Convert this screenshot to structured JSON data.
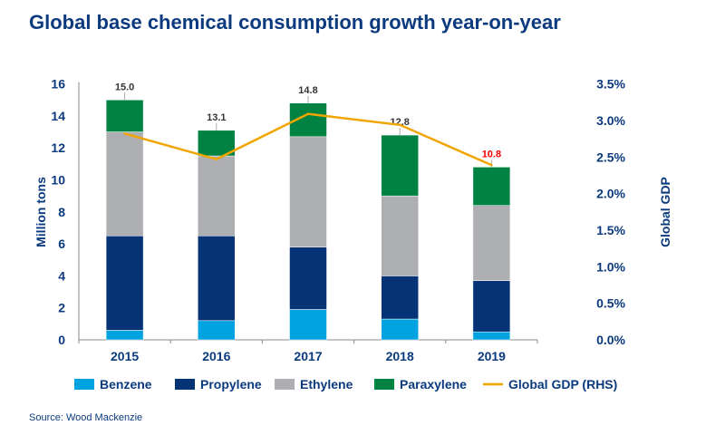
{
  "title": "Global base chemical consumption growth year-on-year",
  "source": "Source: Wood Mackenzie",
  "chart_data": {
    "type": "bar",
    "stacked": true,
    "categories": [
      "2015",
      "2016",
      "2017",
      "2018",
      "2019"
    ],
    "series": [
      {
        "name": "Benzene",
        "color": "#00a3e0",
        "values": [
          0.6,
          1.2,
          1.9,
          1.3,
          0.5
        ]
      },
      {
        "name": "Propylene",
        "color": "#063375",
        "values": [
          5.9,
          5.3,
          3.9,
          2.7,
          3.2
        ]
      },
      {
        "name": "Ethylene",
        "color": "#aeafb2",
        "values": [
          6.5,
          5.0,
          6.9,
          5.0,
          4.7
        ]
      },
      {
        "name": "Paraxylene",
        "color": "#008342",
        "values": [
          2.0,
          1.6,
          2.1,
          3.8,
          2.4
        ]
      }
    ],
    "line_series": {
      "name": "Global GDP (RHS)",
      "color": "#f0a500",
      "axis": "right",
      "values": [
        2.82,
        2.47,
        3.09,
        2.94,
        2.39
      ]
    },
    "totals": [
      "15.0",
      "13.1",
      "14.8",
      "12.8",
      "10.8"
    ],
    "total_colors": [
      "#333333",
      "#333333",
      "#333333",
      "#333333",
      "#ff0000"
    ],
    "ylabel": "Million tons",
    "ylim": [
      0,
      16
    ],
    "yticks": [
      "0",
      "2",
      "4",
      "6",
      "8",
      "10",
      "12",
      "14",
      "16"
    ],
    "y2label": "Global GDP",
    "y2lim": [
      0,
      3.5
    ],
    "y2ticks": [
      "0.0%",
      "0.5%",
      "1.0%",
      "1.5%",
      "2.0%",
      "2.5%",
      "3.0%",
      "3.5%"
    ],
    "grid": false,
    "legend": "bottom"
  }
}
